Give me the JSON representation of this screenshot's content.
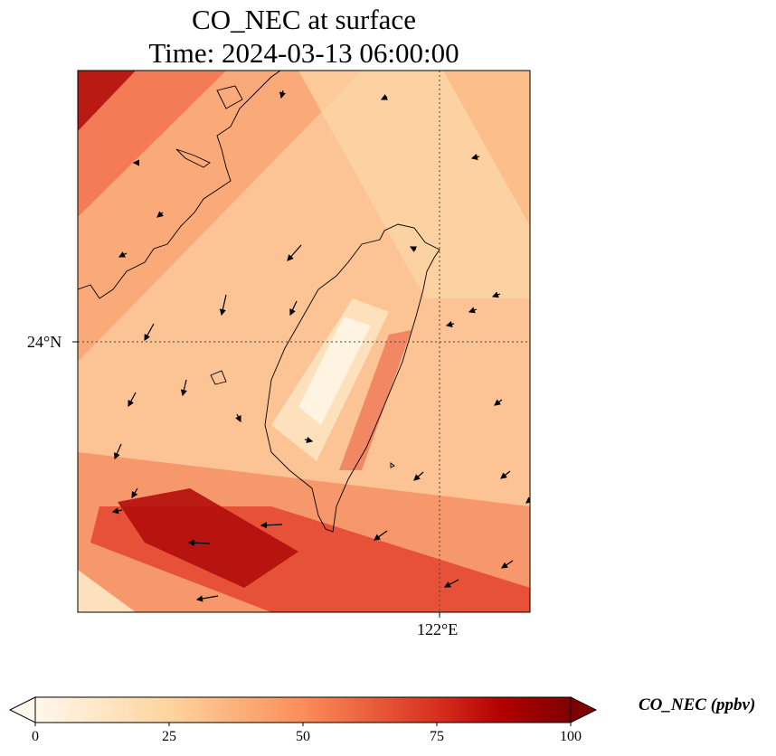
{
  "title": {
    "line1": "CO_NEC at surface",
    "line2": "Time: 2024-03-13 06:00:00"
  },
  "map": {
    "lat_label": "24°N",
    "lon_label": "122°E",
    "colormap": "OrRd",
    "colors": {
      "low": "#fff7ec",
      "mid": "#fdd49e",
      "high": "#d7301f",
      "max": "#7f0000"
    }
  },
  "colorbar": {
    "label": "CO_NEC (ppbv)",
    "ticks": [
      "0",
      "25",
      "50",
      "75",
      "100"
    ],
    "range": [
      0,
      100
    ],
    "extend": "both"
  }
}
